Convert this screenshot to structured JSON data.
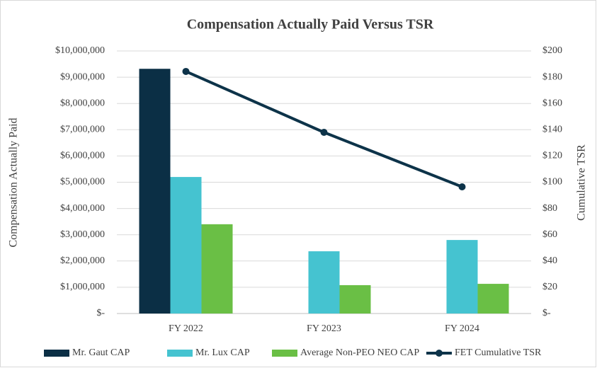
{
  "chart_data": {
    "type": "bar-line",
    "title": "Compensation Actually Paid Versus TSR",
    "y_label": "Compensation Actually Paid",
    "y2_label": "Cumulative TSR",
    "categories": [
      "FY 2022",
      "FY 2023",
      "FY 2024"
    ],
    "series": [
      {
        "name": "Mr. Gaut CAP",
        "color": "#0b2f45",
        "type": "bar",
        "values": [
          9320000,
          null,
          null
        ]
      },
      {
        "name": "Mr. Lux CAP",
        "color": "#45c3d0",
        "type": "bar",
        "values": [
          5200000,
          2370000,
          2800000
        ]
      },
      {
        "name": "Average Non-PEO NEO CAP",
        "color": "#6abf45",
        "type": "bar",
        "values": [
          3400000,
          1080000,
          1130000
        ]
      },
      {
        "name": "FET Cumulative TSR",
        "color": "#0d3349",
        "type": "line",
        "axis": "y2",
        "values": [
          184.4,
          138,
          96.5
        ]
      }
    ],
    "ylim": [
      0,
      10000000
    ],
    "yticks": [
      {
        "value": 0,
        "label": "$-"
      },
      {
        "value": 1000000,
        "label": "$1,000,000"
      },
      {
        "value": 2000000,
        "label": "$2,000,000"
      },
      {
        "value": 3000000,
        "label": "$3,000,000"
      },
      {
        "value": 4000000,
        "label": "$4,000,000"
      },
      {
        "value": 5000000,
        "label": "$5,000,000"
      },
      {
        "value": 6000000,
        "label": "$6,000,000"
      },
      {
        "value": 7000000,
        "label": "$7,000,000"
      },
      {
        "value": 8000000,
        "label": "$8,000,000"
      },
      {
        "value": 9000000,
        "label": "$9,000,000"
      },
      {
        "value": 10000000,
        "label": "$10,000,000"
      }
    ],
    "y2lim": [
      0,
      200
    ],
    "y2ticks": [
      {
        "value": 0,
        "label": "$-"
      },
      {
        "value": 20,
        "label": "$20"
      },
      {
        "value": 40,
        "label": "$40"
      },
      {
        "value": 60,
        "label": "$60"
      },
      {
        "value": 80,
        "label": "$80"
      },
      {
        "value": 100,
        "label": "$100"
      },
      {
        "value": 120,
        "label": "$120"
      },
      {
        "value": 140,
        "label": "$140"
      },
      {
        "value": 160,
        "label": "$160"
      },
      {
        "value": 180,
        "label": "$180"
      },
      {
        "value": 200,
        "label": "$200"
      }
    ],
    "grid": true,
    "legend": "bottom"
  }
}
